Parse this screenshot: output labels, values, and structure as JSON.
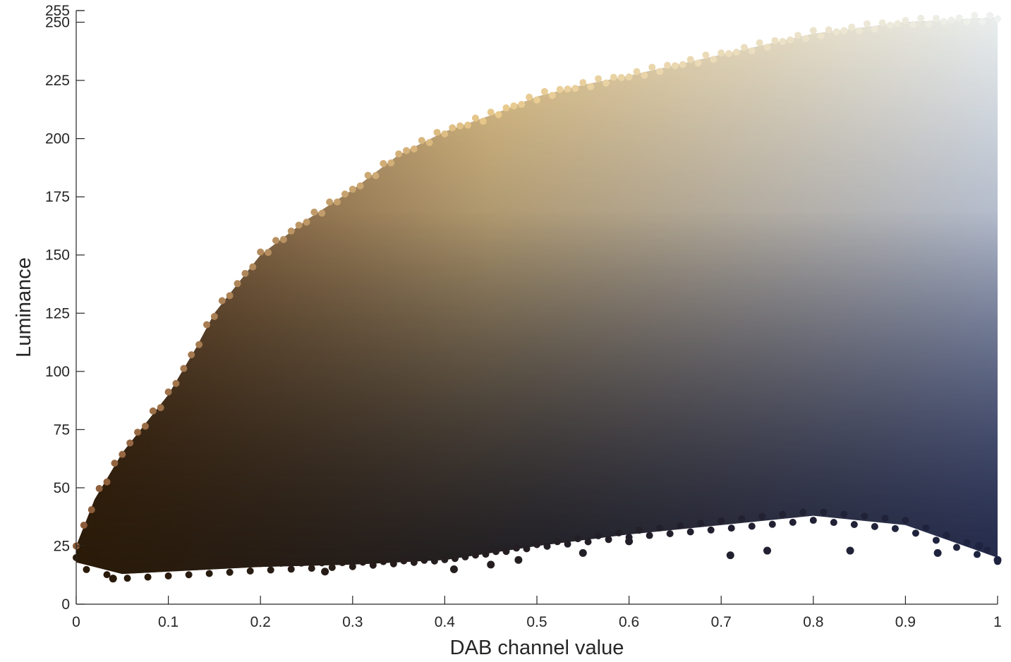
{
  "chart_data": {
    "type": "scatter",
    "title": "",
    "xlabel": "DAB channel value",
    "ylabel": "Luminance",
    "xlim": [
      0,
      1
    ],
    "ylim": [
      0,
      255
    ],
    "x_ticks": [
      0,
      0.1,
      0.2,
      0.3,
      0.4,
      0.5,
      0.6,
      0.7,
      0.8,
      0.9,
      1
    ],
    "x_tick_labels": [
      "0",
      "0.1",
      "0.2",
      "0.3",
      "0.4",
      "0.5",
      "0.6",
      "0.7",
      "0.8",
      "0.9",
      "1"
    ],
    "y_ticks": [
      0,
      25,
      50,
      75,
      100,
      125,
      150,
      175,
      200,
      225,
      250,
      255
    ],
    "y_tick_labels": [
      "0",
      "25",
      "50",
      "75",
      "100",
      "125",
      "150",
      "175",
      "200",
      "225",
      "250",
      "255"
    ],
    "grid": false,
    "legend": "none",
    "upper_envelope": {
      "x": [
        0,
        0.02,
        0.05,
        0.08,
        0.1,
        0.13,
        0.15,
        0.2,
        0.25,
        0.3,
        0.35,
        0.4,
        0.45,
        0.5,
        0.55,
        0.6,
        0.7,
        0.8,
        0.9,
        1
      ],
      "y": [
        25,
        45,
        65,
        80,
        90,
        110,
        125,
        150,
        165,
        178,
        193,
        203,
        210,
        218,
        223,
        227,
        236,
        245,
        250,
        252
      ]
    },
    "lower_envelope": {
      "x": [
        0,
        0.05,
        0.1,
        0.2,
        0.3,
        0.4,
        0.5,
        0.6,
        0.7,
        0.8,
        0.9,
        1
      ],
      "y": [
        18,
        13,
        14,
        16,
        17,
        19,
        25,
        30,
        34,
        38,
        34,
        20
      ]
    },
    "outlier_points": [
      {
        "x": 0.04,
        "y": 11
      },
      {
        "x": 0.41,
        "y": 15
      },
      {
        "x": 0.27,
        "y": 14
      },
      {
        "x": 0.45,
        "y": 17
      },
      {
        "x": 0.48,
        "y": 19
      },
      {
        "x": 0.55,
        "y": 22
      },
      {
        "x": 0.6,
        "y": 27
      },
      {
        "x": 0.71,
        "y": 21
      },
      {
        "x": 0.75,
        "y": 23
      },
      {
        "x": 0.84,
        "y": 23
      },
      {
        "x": 0.935,
        "y": 22
      },
      {
        "x": 0.98,
        "y": 25
      },
      {
        "x": 1,
        "y": 19
      }
    ],
    "colors": {
      "low_dab_dark": "#2a1a08",
      "mid_dab_bright": "#e8c98c",
      "high_dab_bright": "#eef2f0",
      "high_dab_dark": "#1e2340",
      "mid_dark": "#1a1a22",
      "brown": "#8a5a38",
      "blue": "#4a5a8a"
    }
  }
}
